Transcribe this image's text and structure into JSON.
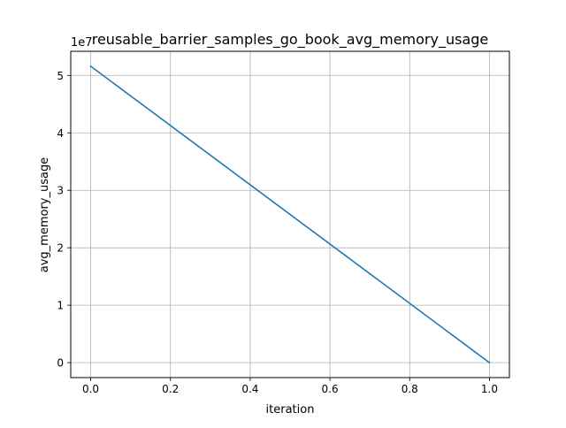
{
  "chart_data": {
    "type": "line",
    "title": "reusable_barrier_samples_go_book_avg_memory_usage",
    "xlabel": "iteration",
    "ylabel": "avg_memory_usage",
    "offset_label": "1e7",
    "xlim": [
      -0.05,
      1.05
    ],
    "ylim": [
      -0.26,
      5.42
    ],
    "x_ticks": [
      0.0,
      0.2,
      0.4,
      0.6,
      0.8,
      1.0
    ],
    "x_tick_labels": [
      "0.0",
      "0.2",
      "0.4",
      "0.6",
      "0.8",
      "1.0"
    ],
    "y_ticks": [
      0,
      1,
      2,
      3,
      4,
      5
    ],
    "y_tick_labels": [
      "0",
      "1",
      "2",
      "3",
      "4",
      "5"
    ],
    "grid": true,
    "legend": "none",
    "series": [
      {
        "color": "#1f77b4",
        "x": [
          0.0,
          1.0
        ],
        "y": [
          5.16,
          0.0
        ]
      }
    ]
  }
}
